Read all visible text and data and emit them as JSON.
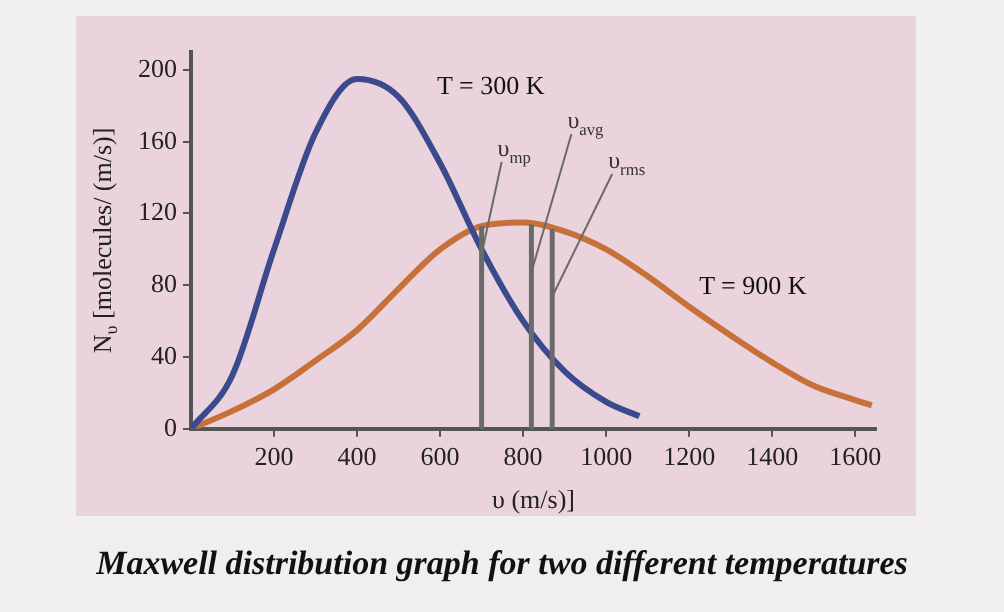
{
  "chart_data": {
    "type": "line",
    "title": "Maxwell distribution graph for two different temperatures",
    "xlabel": "υ (m/s)]",
    "ylabel": "N$_{υ}$ [molecules/ (m/s)]",
    "series": [
      {
        "name": "T = 300 K",
        "color": "#3b4a8c",
        "x": [
          0,
          100,
          200,
          300,
          400,
          500,
          600,
          700,
          800,
          900,
          1000,
          1080
        ],
        "values": [
          0,
          30,
          100,
          165,
          195,
          185,
          148,
          100,
          60,
          32,
          15,
          7
        ]
      },
      {
        "name": "T = 900 K",
        "color": "#c8703a",
        "x": [
          0,
          100,
          200,
          300,
          400,
          500,
          600,
          700,
          800,
          900,
          1000,
          1100,
          1200,
          1300,
          1400,
          1500,
          1600,
          1640
        ],
        "values": [
          0,
          10,
          22,
          38,
          55,
          78,
          100,
          113,
          115,
          110,
          100,
          85,
          68,
          52,
          37,
          24,
          16,
          13
        ]
      }
    ],
    "xlim": [
      0,
      1650
    ],
    "xticks": [
      200,
      400,
      600,
      800,
      1000,
      1200,
      1400,
      1600
    ],
    "ylim": [
      0,
      210
    ],
    "yticks": [
      0,
      40,
      80,
      120,
      160,
      200
    ],
    "ref_lines": [
      {
        "axis": "x",
        "value": 700,
        "label": "υ$_{mp}$",
        "color": "#6a6a6a"
      },
      {
        "axis": "x",
        "value": 820,
        "label": "υ$_{avg}$",
        "color": "#6a6a6a"
      },
      {
        "axis": "x",
        "value": 870,
        "label": "υ$_{rms}$",
        "color": "#6a6a6a"
      }
    ],
    "grid": false,
    "legend": false,
    "marker": "none",
    "line_style": "solid"
  }
}
